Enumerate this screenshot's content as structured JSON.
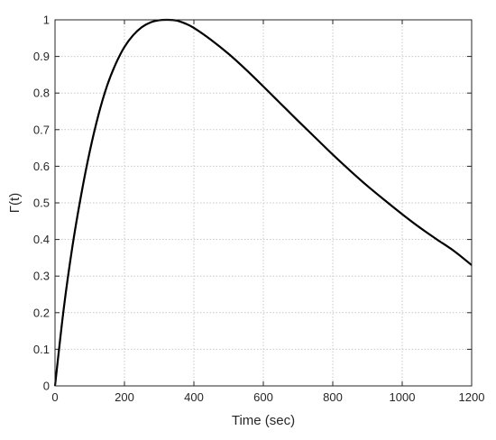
{
  "chart_data": {
    "type": "line",
    "title": "",
    "xlabel": "Time (sec)",
    "ylabel": "Γ(t)",
    "xlim": [
      0,
      1200
    ],
    "ylim": [
      0,
      1
    ],
    "xticks": [
      0,
      200,
      400,
      600,
      800,
      1000,
      1200
    ],
    "yticks": [
      0,
      0.1,
      0.2,
      0.3,
      0.4,
      0.5,
      0.6,
      0.7,
      0.8,
      0.9,
      1
    ],
    "xtick_labels": [
      "0",
      "200",
      "400",
      "600",
      "800",
      "1000",
      "1200"
    ],
    "ytick_labels": [
      "0",
      "0.1",
      "0.2",
      "0.3",
      "0.4",
      "0.5",
      "0.6",
      "0.7",
      "0.8",
      "0.9",
      "1"
    ],
    "grid": true,
    "legend": "none",
    "series": [
      {
        "color": "#000000",
        "x": [
          0,
          25,
          50,
          75,
          100,
          125,
          150,
          175,
          200,
          225,
          250,
          275,
          300,
          325,
          350,
          375,
          400,
          450,
          500,
          550,
          600,
          650,
          700,
          750,
          800,
          850,
          900,
          950,
          1000,
          1050,
          1100,
          1150,
          1200
        ],
        "y": [
          0,
          0.21,
          0.38,
          0.52,
          0.64,
          0.74,
          0.82,
          0.88,
          0.926,
          0.958,
          0.98,
          0.993,
          0.999,
          1.0,
          0.998,
          0.99,
          0.978,
          0.945,
          0.907,
          0.864,
          0.818,
          0.771,
          0.724,
          0.678,
          0.632,
          0.588,
          0.546,
          0.507,
          0.469,
          0.433,
          0.4,
          0.368,
          0.33
        ]
      }
    ]
  }
}
